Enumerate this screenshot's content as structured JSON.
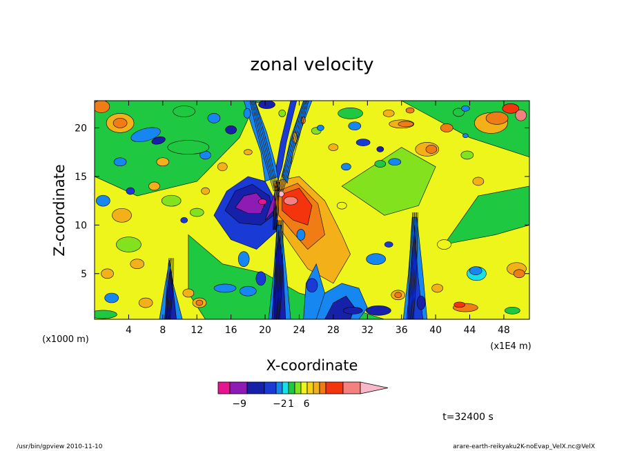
{
  "chart_data": {
    "type": "heatmap",
    "title": "zonal velocity",
    "xlabel": "X-coordinate",
    "ylabel": "Z-coordinate",
    "x_unit_left": "(x1000 m)",
    "x_unit_right": "(x1E4 m)",
    "x_ticks": [
      4,
      8,
      12,
      16,
      20,
      24,
      28,
      32,
      36,
      40,
      44,
      48
    ],
    "y_ticks": [
      5,
      10,
      15,
      20
    ],
    "xlim": [
      0,
      51
    ],
    "ylim": [
      0.3,
      22.8
    ],
    "colorbar": {
      "labels": [
        {
          "value": -9,
          "text": "−9"
        },
        {
          "value": -2,
          "text": "−2"
        },
        {
          "value": 1,
          "text": "1"
        },
        {
          "value": 6,
          "text": "6"
        }
      ],
      "colors": [
        "#e6158f",
        "#8e1bb4",
        "#1620a8",
        "#1a3ad6",
        "#1686f0",
        "#18dfe8",
        "#1ec840",
        "#82e21e",
        "#eef51b",
        "#f6d116",
        "#f4b018",
        "#f07c15",
        "#f4340c",
        "#f58080",
        "#f8b8c8"
      ]
    },
    "features": [
      {
        "name": "negative core",
        "x": 19,
        "z": 12.5,
        "value": -9
      },
      {
        "name": "positive core",
        "x": 23.5,
        "z": 12.5,
        "value": 6
      },
      {
        "name": "mountain-wave plume",
        "x": 8.5,
        "z": 4,
        "value": -2
      },
      {
        "name": "mountain-wave plume",
        "x": 37.5,
        "z": 6,
        "value": -2
      },
      {
        "name": "positive region",
        "x": 27,
        "z": 10,
        "value": 1
      },
      {
        "name": "negative pocket",
        "x": 44,
        "z": 5,
        "value": -2
      }
    ],
    "time_label": "t=32400 s"
  },
  "footer": {
    "left": "/usr/bin/gpview  2010-11-10",
    "right": "arare-earth-reikyaku2K-noEvap_VelX.nc@VelX"
  }
}
